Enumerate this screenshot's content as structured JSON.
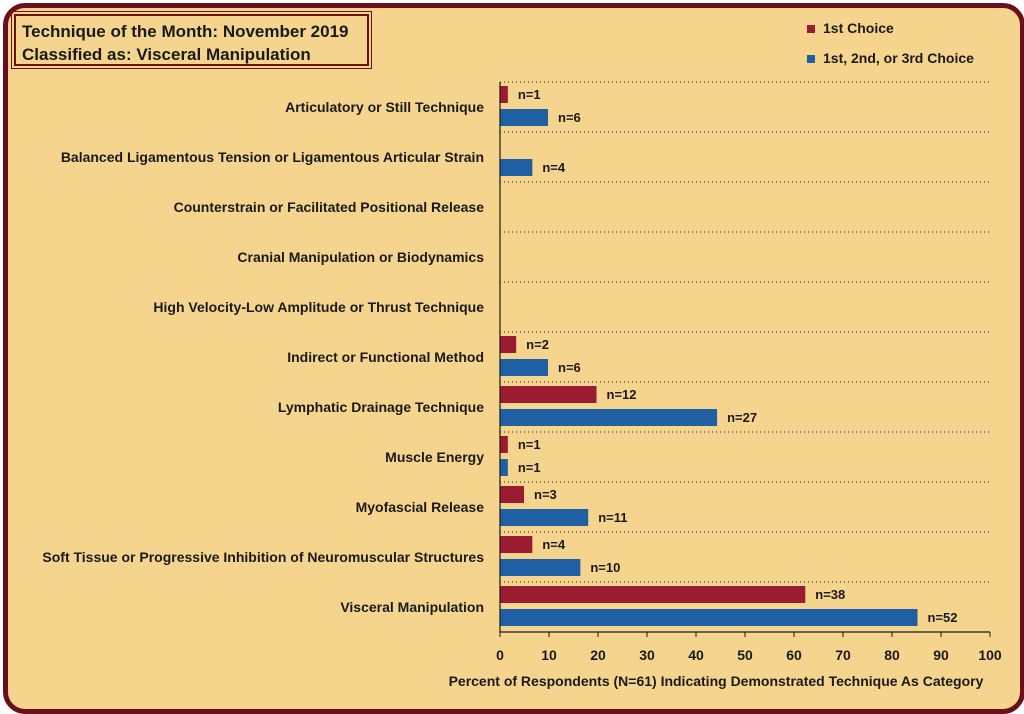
{
  "title_lines": [
    "Technique of the Month: November 2019",
    "Classified as: Visceral Manipulation"
  ],
  "colors": {
    "first_choice": "#9b1b30",
    "any_choice": "#1f5fa3",
    "frame": "#6b0f1a",
    "background": "#f5d48e"
  },
  "chart_data": {
    "type": "bar",
    "orientation": "horizontal",
    "categories": [
      "Articulatory or Still Technique",
      "Balanced Ligamentous Tension or Ligamentous Articular Strain",
      "Counterstrain or Facilitated Positional Release",
      "Cranial Manipulation or Biodynamics",
      "High Velocity-Low Amplitude or Thrust Technique",
      "Indirect or Functional Method",
      "Lymphatic Drainage Technique",
      "Muscle Energy",
      "Myofascial Release",
      "Soft Tissue or Progressive Inhibition of Neuromuscular Structures",
      "Visceral Manipulation"
    ],
    "series": [
      {
        "name": "1st Choice",
        "values": [
          1.6,
          0,
          0,
          0,
          0,
          3.3,
          19.7,
          1.6,
          4.9,
          6.6,
          62.3
        ],
        "labels": [
          "n=1",
          "",
          "",
          "",
          "",
          "n=2",
          "n=12",
          "n=1",
          "n=3",
          "n=4",
          "n=38"
        ]
      },
      {
        "name": "1st, 2nd, or 3rd Choice",
        "values": [
          9.8,
          6.6,
          0,
          0,
          0,
          9.8,
          44.3,
          1.6,
          18.0,
          16.4,
          85.2
        ],
        "labels": [
          "n=6",
          "n=4",
          "",
          "",
          "",
          "n=6",
          "n=27",
          "n=1",
          "n=11",
          "n=10",
          "n=52"
        ]
      }
    ],
    "xlim": [
      0,
      100
    ],
    "xticks": [
      0,
      10,
      20,
      30,
      40,
      50,
      60,
      70,
      80,
      90,
      100
    ],
    "xlabel": "Percent of Respondents (N=61) Indicating Demonstrated Technique As Category",
    "grid": "dotted horizontal separators",
    "legend_position": "top-right"
  }
}
